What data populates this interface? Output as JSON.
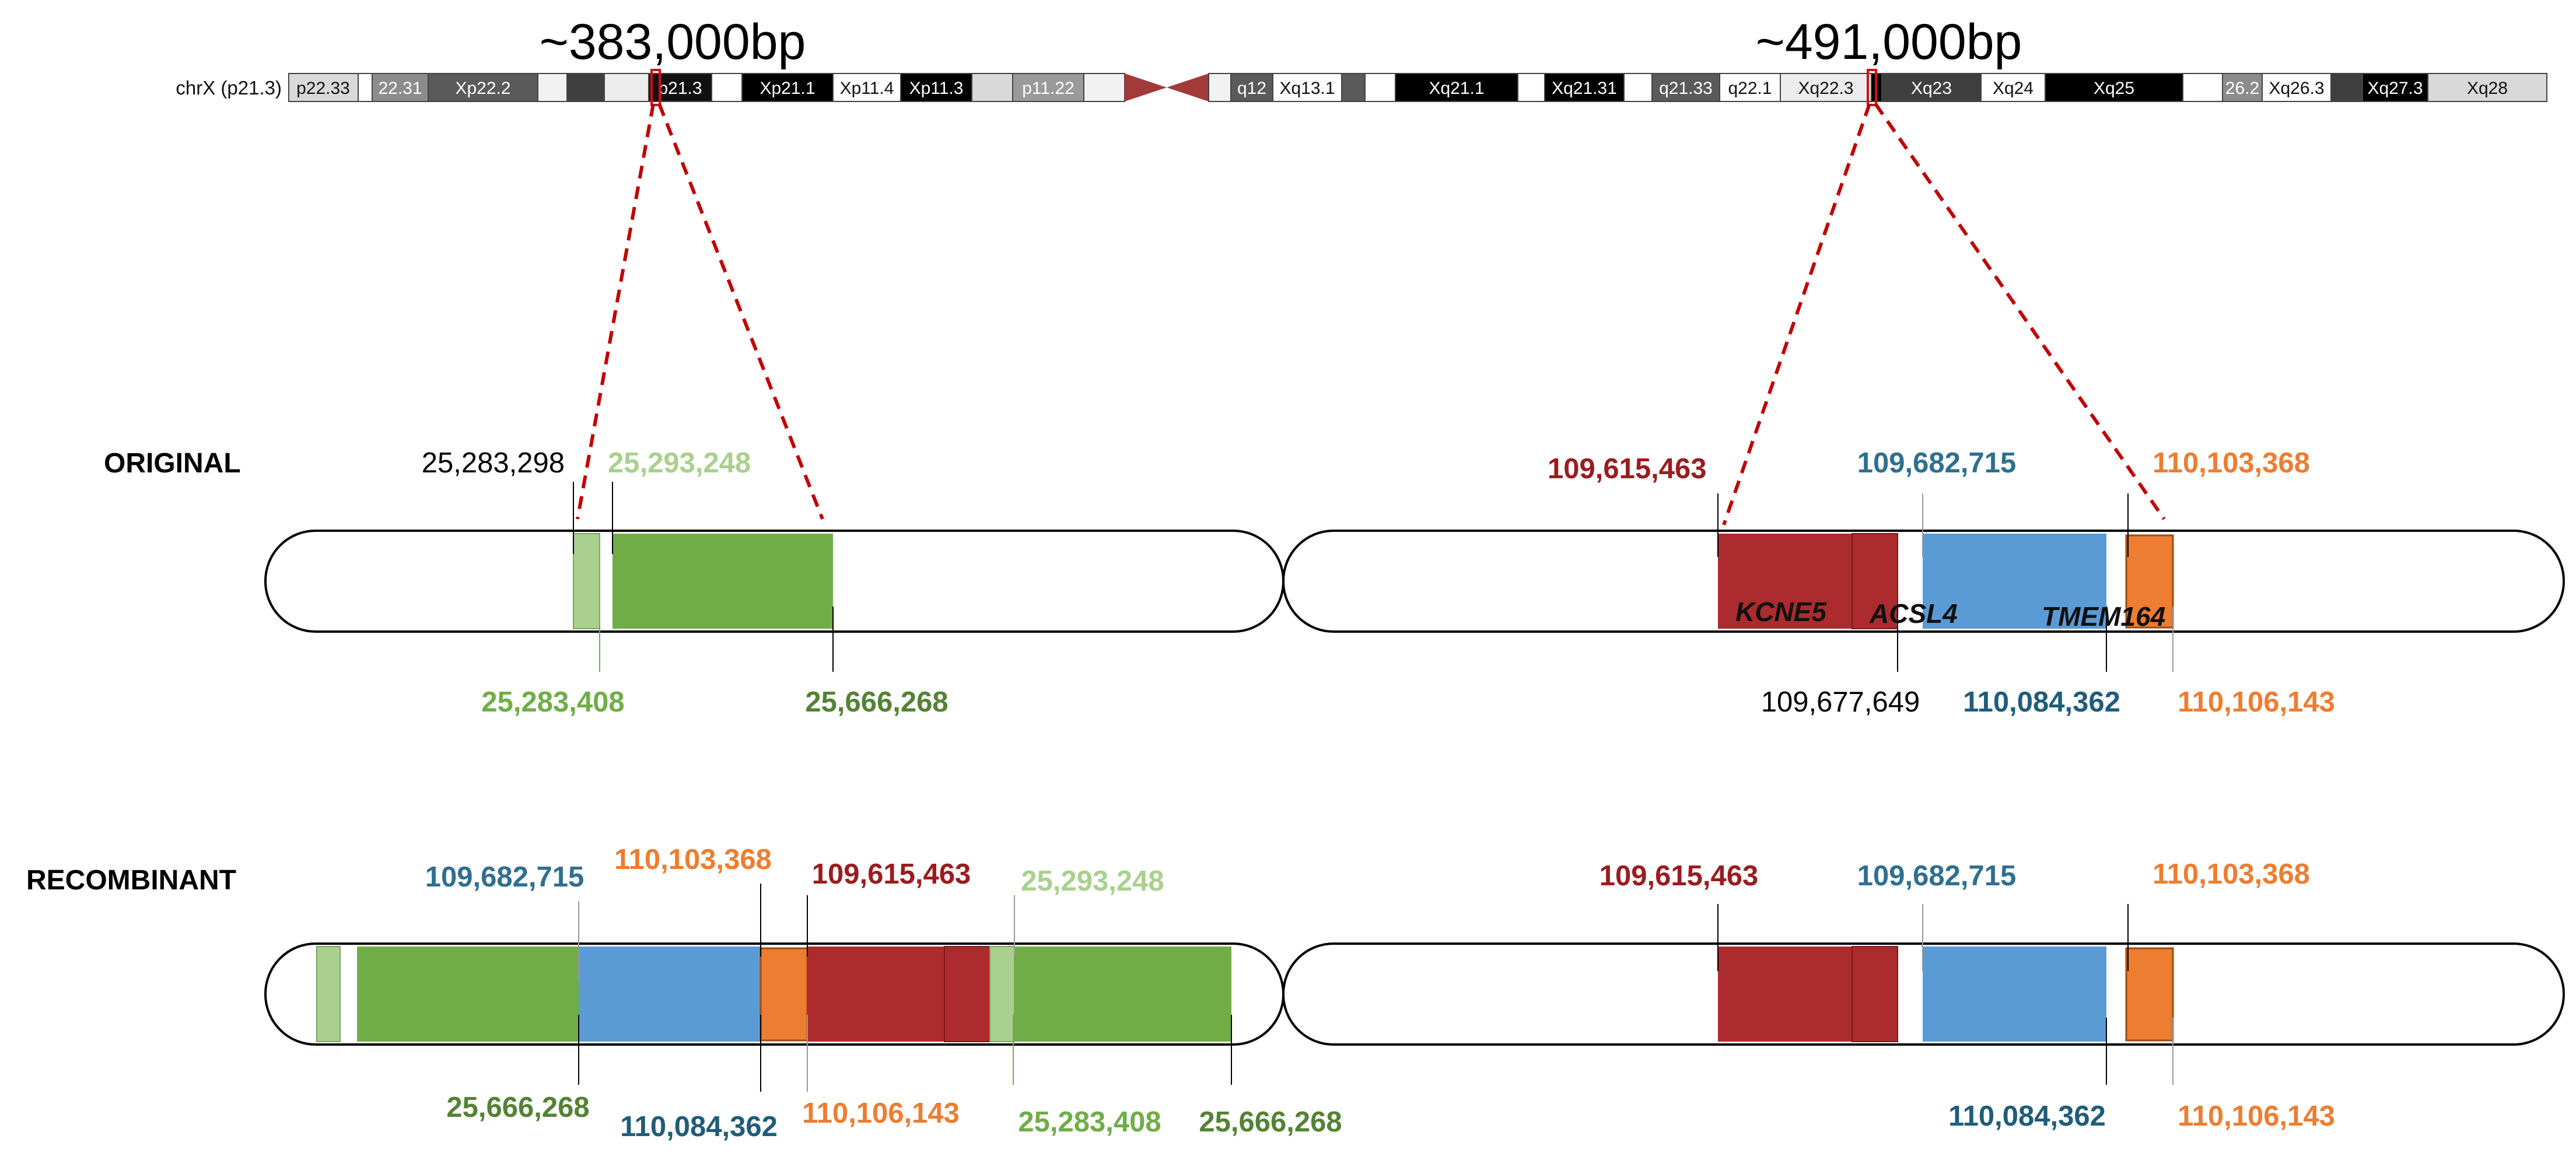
{
  "colors": {
    "light_green": "#a9d08e",
    "green": "#70ad47",
    "dark_green": "#548235",
    "red": "#ab2b2e",
    "dark_red": "#9a1c1f",
    "blue": "#5b9bd5",
    "teal": "#1f5d7a",
    "blue_text": "#2f6f8f",
    "orange": "#ed7d31",
    "outline": "#000000"
  },
  "ideogram": {
    "chromosome_label": "chrX (p21.3)",
    "bands_p": [
      "p22.33",
      "22.31",
      "Xp22.2",
      "",
      "",
      "p21.3",
      "Xp21.1",
      "Xp11.4",
      "Xp11.3",
      "",
      "p11.22"
    ],
    "bands_q": [
      "q12",
      "Xq13.1",
      "",
      "Xq21.1",
      "",
      "Xq21.31",
      "",
      "q21.33",
      "q22.1",
      "Xq22.3",
      "Xq23",
      "Xq24",
      "Xq25",
      "26.2",
      "Xq26.3",
      "",
      "Xq27.3",
      "Xq28"
    ]
  },
  "regions": {
    "left_size": "~383,000bp",
    "right_size": "~491,000bp"
  },
  "rows": {
    "original": "ORIGINAL",
    "recombinant": "RECOMBINANT"
  },
  "genes": {
    "kcne5": "KCNE5",
    "acsl4": "ACSL4",
    "tmem164": "TMEM164"
  },
  "original_labels": {
    "c25283298": "25,283,298",
    "c25293248": "25,293,248",
    "c25283408": "25,283,408",
    "c25666268": "25,666,268",
    "c109615463": "109,615,463",
    "c109682715": "109,682,715",
    "c110103368": "110,103,368",
    "c109677649": "109,677,649",
    "c110084362": "110,084,362",
    "c110106143": "110,106,143"
  },
  "recombinant_labels": {
    "top_109682715": "109,682,715",
    "top_110103368": "110,103,368",
    "top_109615463": "109,615,463",
    "top_25293248": "25,293,248",
    "bot_25666268_a": "25,666,268",
    "bot_110084362": "110,084,362",
    "bot_110106143": "110,106,143",
    "bot_25283408": "25,283,408",
    "bot_25666268_b": "25,666,268",
    "right_top_109615463": "109,615,463",
    "right_top_109682715": "109,682,715",
    "right_top_110103368": "110,103,368",
    "right_bot_110084362": "110,084,362",
    "right_bot_110106143": "110,106,143"
  }
}
